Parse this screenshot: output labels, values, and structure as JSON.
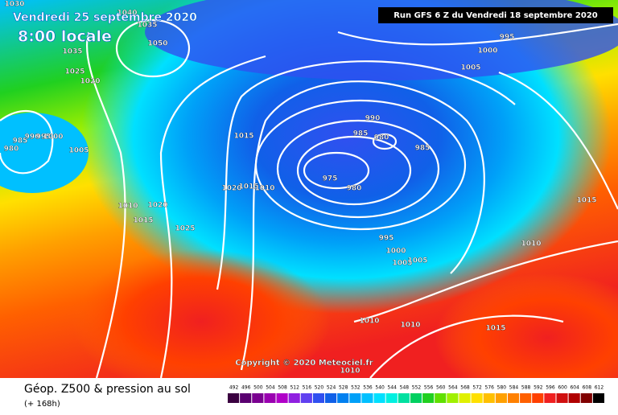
{
  "header": {
    "title": "Vendredi 25 septembre 2020",
    "time": "8:00 locale",
    "run": "Run GFS 6 Z du Vendredi 18 septembre 2020"
  },
  "copyright": "Copyright © 2020 Meteociel.fr",
  "footer": {
    "title": "Géop. Z500 & pression au sol",
    "lead": "(+ 168h)"
  },
  "isobar_labels": [
    "1030",
    "1040",
    "1035",
    "1050",
    "1035",
    "1025",
    "1020",
    "980",
    "985",
    "990",
    "995",
    "1000",
    "1005",
    "1015",
    "1020",
    "1015",
    "1010",
    "1010",
    "1020",
    "1015",
    "1025",
    "990",
    "985",
    "980",
    "985",
    "975",
    "980",
    "995",
    "1000",
    "1005",
    "1005",
    "995",
    "1000",
    "1005",
    "1015",
    "1010",
    "1010",
    "1010",
    "1015",
    "1010"
  ],
  "scale": {
    "labels": [
      "492",
      "496",
      "500",
      "504",
      "508",
      "512",
      "516",
      "520",
      "524",
      "528",
      "532",
      "536",
      "540",
      "544",
      "548",
      "552",
      "556",
      "560",
      "564",
      "568",
      "572",
      "576",
      "580",
      "584",
      "588",
      "592",
      "596",
      "600",
      "604",
      "608",
      "612"
    ],
    "colors": [
      "#3a0040",
      "#5a0070",
      "#7a0090",
      "#9a00b0",
      "#b000c8",
      "#9020e0",
      "#6040f0",
      "#3050f0",
      "#1060e8",
      "#0080f0",
      "#00a0f8",
      "#00c0ff",
      "#00e0ff",
      "#00f0e0",
      "#00e0a0",
      "#00d060",
      "#20d020",
      "#60e000",
      "#a0f000",
      "#e0f000",
      "#ffe000",
      "#ffc000",
      "#ffa000",
      "#ff8000",
      "#ff6000",
      "#ff4000",
      "#f02020",
      "#d01010",
      "#b00000",
      "#800000",
      "#000000"
    ]
  }
}
